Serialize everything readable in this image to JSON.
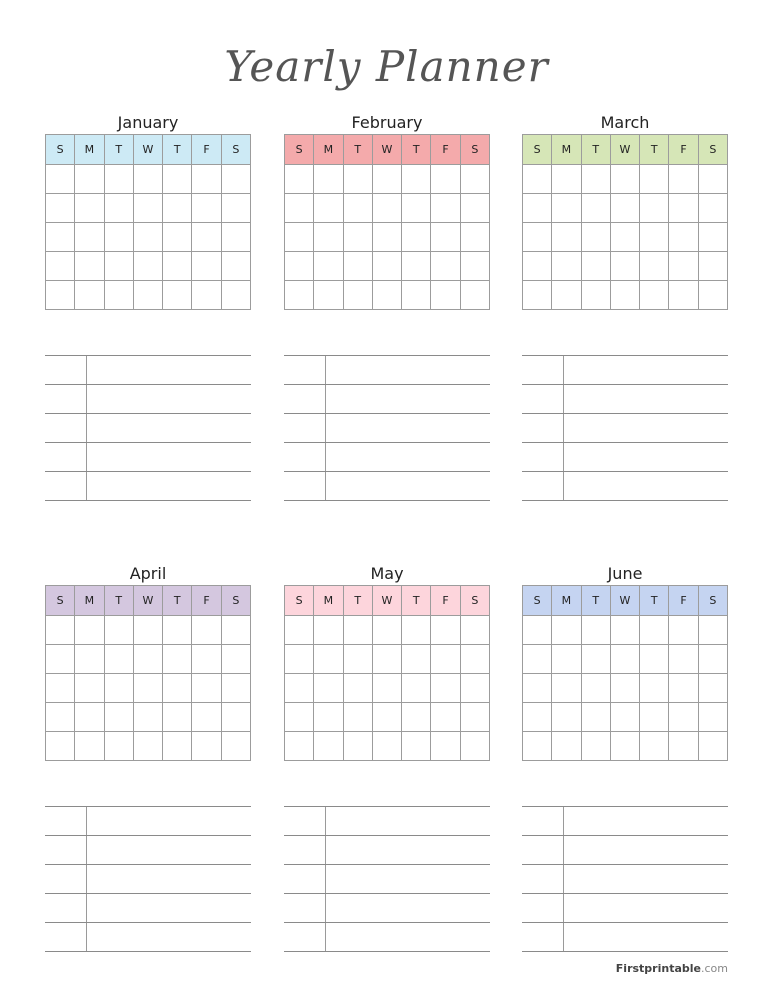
{
  "title": "Yearly Planner",
  "weekdays": [
    "S",
    "M",
    "T",
    "W",
    "T",
    "F",
    "S"
  ],
  "months": [
    {
      "name": "January",
      "color": "#cdeaf5"
    },
    {
      "name": "February",
      "color": "#f4aaab"
    },
    {
      "name": "March",
      "color": "#d6e6b7"
    },
    {
      "name": "April",
      "color": "#d4c7df"
    },
    {
      "name": "May",
      "color": "#fdd5dc"
    },
    {
      "name": "June",
      "color": "#c5d4f1"
    }
  ],
  "brand": {
    "name": "Firstprintable",
    "suffix": ".com"
  }
}
